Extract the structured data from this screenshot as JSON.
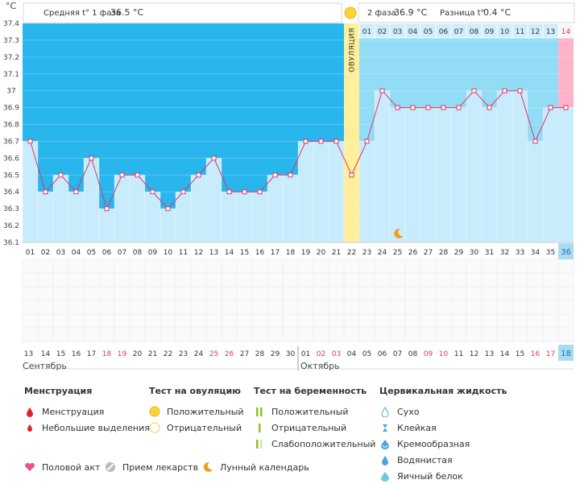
{
  "header": {
    "unit": "°C",
    "phase1_label": "Средняя t° 1 фаза",
    "phase1_value": "36.5 °C",
    "phase2_label": "2 фаза",
    "phase2_value": "36.9 °C",
    "diff_label": "Разница t°",
    "diff_value": "0.4 °C",
    "ovulation_label": "ОВУЛЯЦИЯ"
  },
  "colors": {
    "phase1_bg": "#29b6ec",
    "phase2_bg": "#93dcf6",
    "bar": "#c8ecfb",
    "line": "#e0336a",
    "ovulation": "#ffef9a",
    "forecast": "#ffb3c8",
    "month_day_red": "#e0336a",
    "selected": "#a9dcf3"
  },
  "chart_data": {
    "type": "line",
    "y_axis_label": "°C",
    "ylim": [
      36.1,
      37.4
    ],
    "yticks": [
      "37.4",
      "37.3",
      "37.2",
      "37.1",
      "37",
      "36.9",
      "36.8",
      "36.7",
      "36.6",
      "36.5",
      "36.4",
      "36.3",
      "36.2",
      "36.1"
    ],
    "cycle_days": [
      "01",
      "02",
      "03",
      "04",
      "05",
      "06",
      "07",
      "08",
      "09",
      "10",
      "11",
      "12",
      "13",
      "14",
      "15",
      "16",
      "17",
      "18",
      "19",
      "20",
      "21",
      "22",
      "23",
      "24",
      "25",
      "26",
      "27",
      "28",
      "29",
      "30",
      "31",
      "32",
      "33",
      "34",
      "35",
      "36"
    ],
    "temperatures": [
      36.7,
      36.4,
      36.5,
      36.4,
      36.6,
      36.3,
      36.5,
      36.5,
      36.4,
      36.3,
      36.4,
      36.5,
      36.6,
      36.4,
      36.4,
      36.4,
      36.5,
      36.5,
      36.7,
      36.7,
      36.7,
      36.5,
      36.7,
      37.0,
      36.9,
      36.9,
      36.9,
      36.9,
      36.9,
      37.0,
      36.9,
      37.0,
      37.0,
      36.7,
      36.9,
      36.9
    ],
    "ovulation_day": "22",
    "phase2_days": [
      "01",
      "02",
      "03",
      "04",
      "05",
      "06",
      "07",
      "08",
      "09",
      "10",
      "11",
      "12",
      "13",
      "14"
    ],
    "calendar_dates": [
      "13",
      "14",
      "15",
      "16",
      "17",
      "18",
      "19",
      "20",
      "21",
      "22",
      "23",
      "24",
      "25",
      "26",
      "27",
      "28",
      "29",
      "30",
      "01",
      "02",
      "03",
      "04",
      "05",
      "06",
      "07",
      "08",
      "09",
      "10",
      "11",
      "12",
      "13",
      "14",
      "15",
      "16",
      "17",
      "18"
    ],
    "red_dates": [
      5,
      6,
      12,
      13,
      19,
      20,
      26,
      27,
      33,
      34
    ],
    "month_start": "Сентябрь",
    "month_next": "Октябрь",
    "current_day": "36",
    "current_date": "18",
    "forecast_day": "14",
    "moon_day": "25"
  },
  "legend": {
    "menstruation_title": "Менструация",
    "menstruation_items": [
      "Менструация",
      "Небольшие выделения"
    ],
    "ovulation_test_title": "Тест на овуляцию",
    "ovulation_test_items": [
      "Положительный",
      "Отрицательный"
    ],
    "pregnancy_test_title": "Тест на беременность",
    "pregnancy_test_items": [
      "Положительный",
      "Отрицательный",
      "Слабоположительный"
    ],
    "cervical_title": "Цервикальная жидкость",
    "cervical_items": [
      "Сухо",
      "Клейкая",
      "Кремообразная",
      "Водянистая",
      "Яичный белок"
    ],
    "bottom_items": [
      "Половой акт",
      "Прием лекарств",
      "Лунный календарь"
    ]
  }
}
